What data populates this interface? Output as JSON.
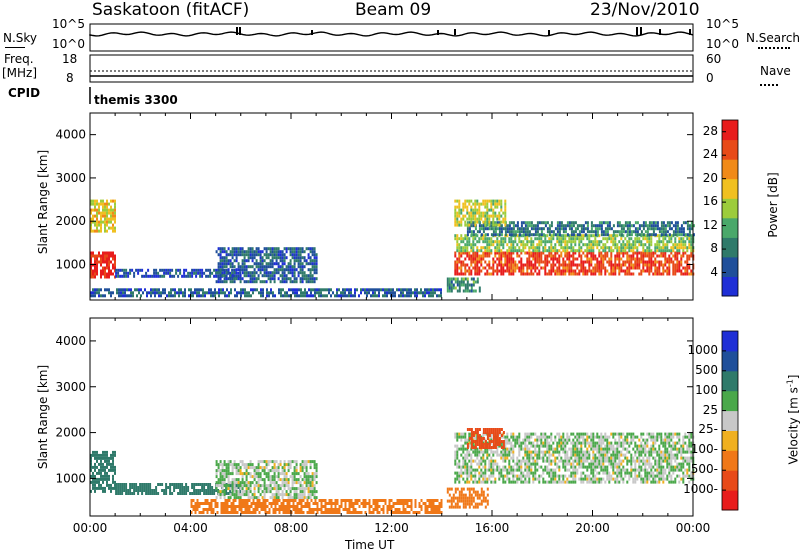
{
  "header": {
    "station": "Saskatoon (fitACF)",
    "beam": "Beam 09",
    "date": "23/Nov/2010"
  },
  "strips": {
    "nsky_label": "N.Sky",
    "nsky_ticks": [
      "10^5",
      "10^0"
    ],
    "nsearch_label": "N.Search",
    "nsearch_ticks": [
      "10^5",
      "10^0"
    ],
    "freq_label_line1": "Freq.",
    "freq_label_line2": "[MHz]",
    "freq_ticks": [
      "18",
      "8"
    ],
    "nave_label": "Nave",
    "nave_ticks": [
      "60",
      "0"
    ],
    "cpid_label": "CPID",
    "cpid_value": "themis 3300"
  },
  "chart_data": [
    {
      "type": "heatmap",
      "title": "",
      "quantity": "Power",
      "xlabel": "Time UT",
      "ylabel": "Slant Range [km]",
      "xlim": [
        0,
        24
      ],
      "ylim": [
        180,
        4500
      ],
      "x_ticks": [
        "00:00",
        "04:00",
        "08:00",
        "12:00",
        "16:00",
        "20:00",
        "00:00"
      ],
      "y_ticks": [
        1000,
        2000,
        3000,
        4000
      ],
      "colorbar": {
        "label": "Power [dB]",
        "ticks": [
          4,
          8,
          12,
          16,
          20,
          24,
          28
        ],
        "range": [
          0,
          30
        ],
        "colors": [
          "#1f2fd6",
          "#1f4f9a",
          "#2f7a6a",
          "#4aa86a",
          "#9ccc3c",
          "#f0c020",
          "#f08a18",
          "#e84a18",
          "#e81c1c"
        ]
      },
      "regions": [
        {
          "t0": 0.0,
          "t1": 1.0,
          "r0": 700,
          "r1": 1300,
          "power": 28
        },
        {
          "t0": 0.0,
          "t1": 1.0,
          "r0": 1800,
          "r1": 2500,
          "power": 18
        },
        {
          "t0": 0.0,
          "t1": 14.0,
          "r0": 250,
          "r1": 450,
          "power": 6
        },
        {
          "t0": 1.0,
          "t1": 6.0,
          "r0": 700,
          "r1": 900,
          "power": 4
        },
        {
          "t0": 5.0,
          "t1": 9.0,
          "r0": 600,
          "r1": 1400,
          "power": 6
        },
        {
          "t0": 14.2,
          "t1": 15.5,
          "r0": 400,
          "r1": 700,
          "power": 10
        },
        {
          "t0": 14.5,
          "t1": 24.0,
          "r0": 800,
          "r1": 1300,
          "power": 26
        },
        {
          "t0": 14.5,
          "t1": 24.0,
          "r0": 1300,
          "r1": 1700,
          "power": 14
        },
        {
          "t0": 15.0,
          "t1": 24.0,
          "r0": 1700,
          "r1": 2000,
          "power": 8
        },
        {
          "t0": 14.5,
          "t1": 16.5,
          "r0": 1900,
          "r1": 2500,
          "power": 16
        }
      ]
    },
    {
      "type": "heatmap",
      "title": "",
      "quantity": "Velocity",
      "xlabel": "Time UT",
      "ylabel": "Slant Range [km]",
      "xlim": [
        0,
        24
      ],
      "ylim": [
        180,
        4500
      ],
      "x_ticks": [
        "00:00",
        "04:00",
        "08:00",
        "12:00",
        "16:00",
        "20:00",
        "00:00"
      ],
      "y_ticks": [
        1000,
        2000,
        3000,
        4000
      ],
      "colorbar": {
        "label": "Velocity [m s^-1]",
        "ticks": [
          "1000",
          "500",
          "100",
          "25",
          "-25",
          "-100",
          "-500",
          "-1000"
        ],
        "colors": [
          "#1f2fd6",
          "#1f4f9a",
          "#2f7a6a",
          "#4aa84a",
          "#c8c8c8",
          "#f0b020",
          "#f07818",
          "#e84a18",
          "#e81c1c"
        ]
      },
      "regions": [
        {
          "t0": 0.0,
          "t1": 1.0,
          "r0": 700,
          "r1": 1600,
          "velocity": 100
        },
        {
          "t0": 1.0,
          "t1": 6.0,
          "r0": 700,
          "r1": 900,
          "velocity": 100
        },
        {
          "t0": 5.0,
          "t1": 9.0,
          "r0": 600,
          "r1": 1400,
          "velocity": 0
        },
        {
          "t0": 4.0,
          "t1": 14.0,
          "r0": 250,
          "r1": 550,
          "velocity": -100
        },
        {
          "t0": 14.2,
          "t1": 15.8,
          "r0": 400,
          "r1": 800,
          "velocity": -100
        },
        {
          "t0": 14.5,
          "t1": 24.0,
          "r0": 900,
          "r1": 2000,
          "velocity": 0
        },
        {
          "t0": 15.0,
          "t1": 16.5,
          "r0": 1700,
          "r1": 2100,
          "velocity": -500
        }
      ]
    }
  ]
}
